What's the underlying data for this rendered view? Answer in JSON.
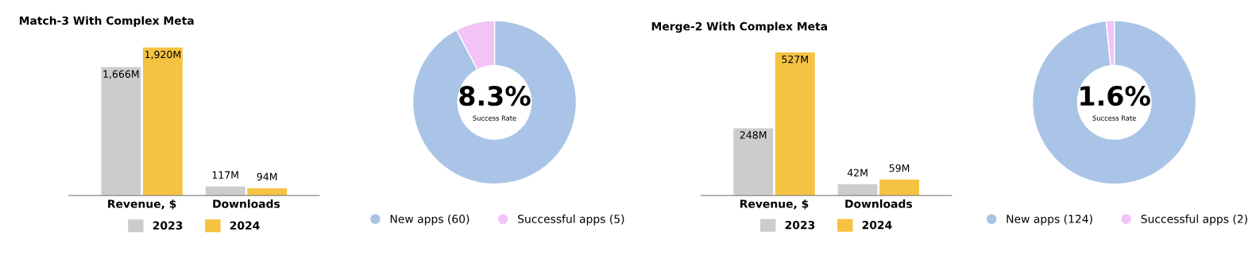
{
  "chart_data": [
    {
      "type": "bar",
      "title": "Match-3 With Complex Meta",
      "categories": [
        "Revenue, $",
        "Downloads"
      ],
      "legend": "bottom",
      "series": [
        {
          "name": "2023",
          "color": "#cccccc",
          "values": [
            1666,
            117
          ],
          "value_labels": [
            "1,666M",
            "117M"
          ]
        },
        {
          "name": "2024",
          "color": "#f5c242",
          "values": [
            1920,
            94
          ],
          "value_labels": [
            "1,920M",
            "94M"
          ]
        }
      ]
    },
    {
      "type": "donut",
      "categories": [
        "New apps (60)",
        "Successful apps (5)"
      ],
      "values": [
        60,
        5
      ],
      "colors": [
        "#a9c4e6",
        "#f3c3f7"
      ],
      "legend": "bottom",
      "annotations": [
        "8.3%",
        "Success Rate"
      ]
    },
    {
      "type": "bar",
      "title": "Merge-2 With Complex Meta",
      "categories": [
        "Revenue, $",
        "Downloads"
      ],
      "legend": "bottom",
      "series": [
        {
          "name": "2023",
          "color": "#cccccc",
          "values": [
            248,
            42
          ],
          "value_labels": [
            "248M",
            "42M"
          ]
        },
        {
          "name": "2024",
          "color": "#f5c242",
          "values": [
            527,
            59
          ],
          "value_labels": [
            "527M",
            "59M"
          ]
        }
      ]
    },
    {
      "type": "donut",
      "categories": [
        "New apps (124)",
        "Successful apps (2)"
      ],
      "values": [
        124,
        2
      ],
      "colors": [
        "#a9c4e6",
        "#f3c3f7"
      ],
      "legend": "bottom",
      "annotations": [
        "1.6%",
        "Success Rate"
      ]
    }
  ]
}
